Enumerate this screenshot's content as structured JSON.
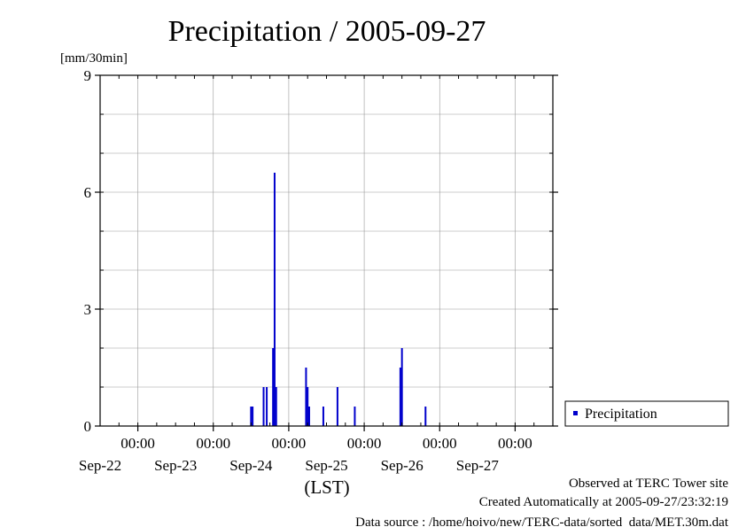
{
  "chart_data": {
    "type": "bar",
    "title": "Precipitation / 2005-09-27",
    "ylabel": "[mm/30min]",
    "xlabel": "(LST)",
    "ylim": [
      0,
      9
    ],
    "xlim": [
      "2005-09-21T12:00",
      "2005-09-27T12:00"
    ],
    "y_ticks": [
      {
        "value": 0,
        "label": "0"
      },
      {
        "value": 3,
        "label": "3"
      },
      {
        "value": 6,
        "label": "6"
      },
      {
        "value": 9,
        "label": "9"
      }
    ],
    "y_minor_step": 1,
    "x_ticks": [
      {
        "datetime": "2005-09-22T00:00",
        "time_label": "00:00",
        "date_label": "Sep-22"
      },
      {
        "datetime": "2005-09-23T00:00",
        "time_label": "00:00",
        "date_label": "Sep-23"
      },
      {
        "datetime": "2005-09-24T00:00",
        "time_label": "00:00",
        "date_label": "Sep-24"
      },
      {
        "datetime": "2005-09-25T00:00",
        "time_label": "00:00",
        "date_label": "Sep-25"
      },
      {
        "datetime": "2005-09-26T00:00",
        "time_label": "00:00",
        "date_label": "Sep-26"
      },
      {
        "datetime": "2005-09-27T00:00",
        "time_label": "00:00",
        "date_label": "Sep-27"
      }
    ],
    "grid": true,
    "legend_position": "right",
    "series": [
      {
        "name": "Precipitation",
        "color": "#0000cc",
        "points": [
          {
            "t": "2005-09-23T12:00",
            "v": 0.5
          },
          {
            "t": "2005-09-23T12:30",
            "v": 0.5
          },
          {
            "t": "2005-09-23T16:00",
            "v": 1.0
          },
          {
            "t": "2005-09-23T17:00",
            "v": 1.0
          },
          {
            "t": "2005-09-23T19:00",
            "v": 2.0
          },
          {
            "t": "2005-09-23T19:30",
            "v": 6.5
          },
          {
            "t": "2005-09-23T20:00",
            "v": 1.0
          },
          {
            "t": "2005-09-24T05:30",
            "v": 1.5
          },
          {
            "t": "2005-09-24T06:00",
            "v": 1.0
          },
          {
            "t": "2005-09-24T06:30",
            "v": 0.5
          },
          {
            "t": "2005-09-24T11:00",
            "v": 0.5
          },
          {
            "t": "2005-09-24T15:30",
            "v": 1.0
          },
          {
            "t": "2005-09-24T21:00",
            "v": 0.5
          },
          {
            "t": "2005-09-25T11:30",
            "v": 1.5
          },
          {
            "t": "2005-09-25T12:00",
            "v": 2.0
          },
          {
            "t": "2005-09-25T19:30",
            "v": 0.5
          }
        ]
      }
    ]
  },
  "footer": {
    "line1": "Observed at TERC Tower site",
    "line2": "Created Automatically at 2005-09-27/23:32:19",
    "line3": "Data source : /home/hoivo/new/TERC-data/sorted  data/MET.30m.dat"
  }
}
